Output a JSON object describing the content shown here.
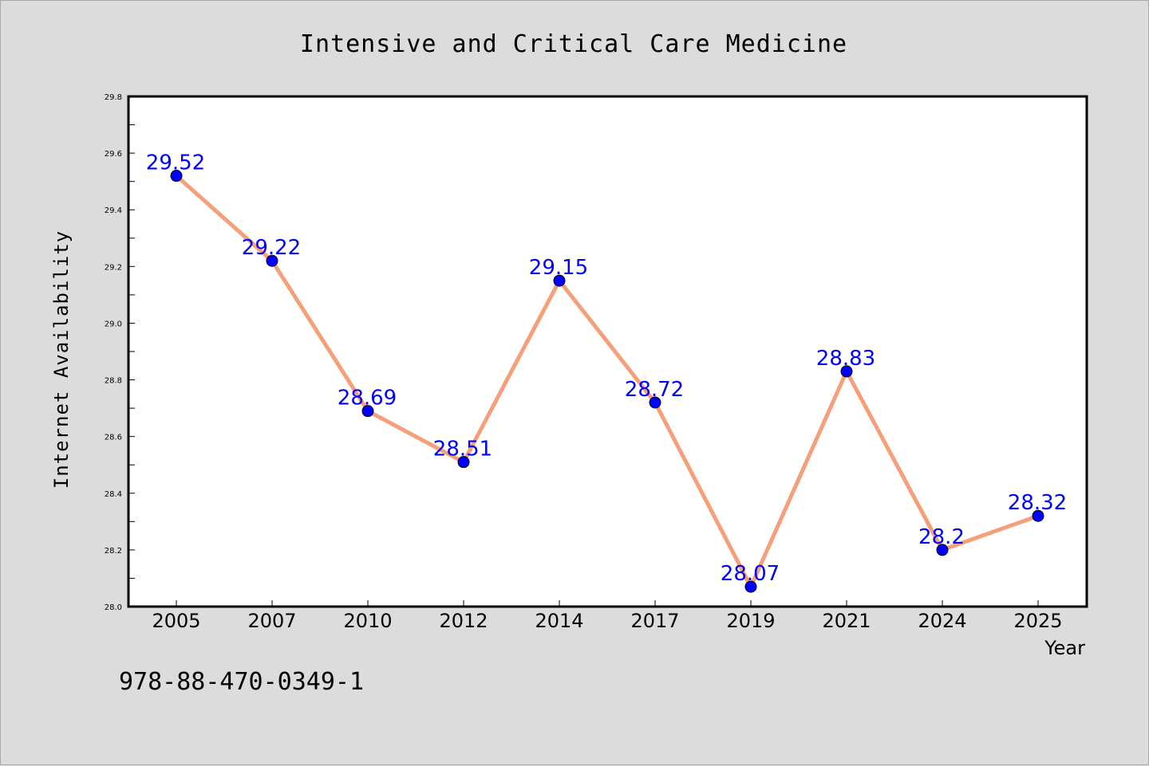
{
  "chart_data": {
    "type": "line",
    "title": "Intensive and Critical Care Medicine",
    "xlabel": "Year",
    "ylabel": "Internet Availability",
    "categories": [
      "2005",
      "2007",
      "2010",
      "2012",
      "2014",
      "2017",
      "2019",
      "2021",
      "2024",
      "2025"
    ],
    "series": [
      {
        "values": [
          29.52,
          29.22,
          28.69,
          28.51,
          29.15,
          28.72,
          28.07,
          28.83,
          28.2,
          28.32
        ],
        "data_labels": [
          "29.52",
          "29.22",
          "28.69",
          "28.51",
          "29.15",
          "28.72",
          "28.07",
          "28.83",
          "28.2",
          "28.32"
        ]
      }
    ],
    "ylim": [
      28.0,
      29.8
    ],
    "yticks": [
      "28.0",
      "28.2",
      "28.4",
      "28.6",
      "28.8",
      "29.0",
      "29.2",
      "29.4",
      "29.6",
      "29.8"
    ],
    "grid": false,
    "legend": "none",
    "colors": {
      "line": "#f5a07a",
      "marker": "#0000ff",
      "label": "#0000ff",
      "background": "#dcdcdc",
      "plot_background": "#ffffff"
    }
  },
  "footer": {
    "isbn": "978-88-470-0349-1"
  }
}
